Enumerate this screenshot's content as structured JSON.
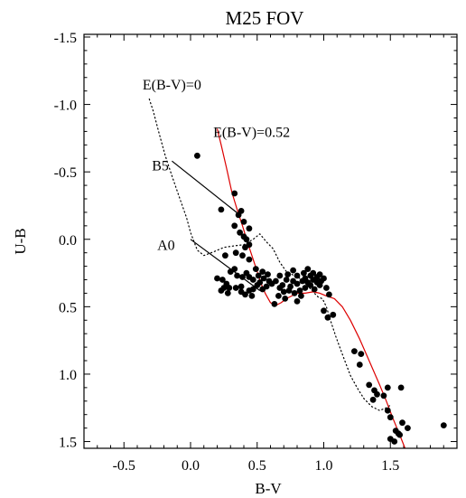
{
  "chart_data": {
    "type": "scatter",
    "title": "M25 FOV",
    "xlabel": "B-V",
    "ylabel": "U-B",
    "xlim": [
      -0.8,
      2.0
    ],
    "ylim": [
      1.55,
      -1.52
    ],
    "y_axis_inverted": true,
    "grid": false,
    "legend": "none",
    "x_ticks": [
      {
        "value": -0.5,
        "label": "-0.5"
      },
      {
        "value": 0.0,
        "label": "0.0"
      },
      {
        "value": 0.5,
        "label": "0.5"
      },
      {
        "value": 1.0,
        "label": "1.0"
      },
      {
        "value": 1.5,
        "label": "1.5"
      }
    ],
    "y_ticks": [
      {
        "value": -1.5,
        "label": "-1.5"
      },
      {
        "value": -1.0,
        "label": "-1.0"
      },
      {
        "value": -0.5,
        "label": "-0.5"
      },
      {
        "value": 0.0,
        "label": "0.0"
      },
      {
        "value": 0.5,
        "label": "0.5"
      },
      {
        "value": 1.0,
        "label": "1.0"
      },
      {
        "value": 1.5,
        "label": "1.5"
      }
    ],
    "x_minor_step": 0.1,
    "y_minor_step": 0.1,
    "series": [
      {
        "kind": "curve",
        "style": "dotted",
        "color": "#000000",
        "points": [
          [
            -0.31,
            -1.04
          ],
          [
            -0.28,
            -0.95
          ],
          [
            -0.24,
            -0.8
          ],
          [
            -0.19,
            -0.62
          ],
          [
            -0.14,
            -0.47
          ],
          [
            -0.08,
            -0.3
          ],
          [
            -0.03,
            -0.16
          ],
          [
            0.0,
            -0.05
          ],
          [
            0.05,
            0.08
          ],
          [
            0.1,
            0.12
          ],
          [
            0.18,
            0.09
          ],
          [
            0.25,
            0.06
          ],
          [
            0.32,
            0.05
          ],
          [
            0.4,
            0.04
          ],
          [
            0.47,
            0.0
          ],
          [
            0.52,
            -0.04
          ],
          [
            0.57,
            0.02
          ],
          [
            0.62,
            0.07
          ],
          [
            0.67,
            0.17
          ],
          [
            0.72,
            0.24
          ],
          [
            0.78,
            0.27
          ],
          [
            0.84,
            0.3
          ],
          [
            0.92,
            0.39
          ],
          [
            0.96,
            0.43
          ],
          [
            0.99,
            0.44
          ],
          [
            1.02,
            0.5
          ],
          [
            1.05,
            0.6
          ],
          [
            1.09,
            0.72
          ],
          [
            1.15,
            0.88
          ],
          [
            1.2,
            1.01
          ],
          [
            1.25,
            1.1
          ],
          [
            1.3,
            1.18
          ],
          [
            1.36,
            1.24
          ],
          [
            1.42,
            1.27
          ],
          [
            1.47,
            1.25
          ],
          [
            1.5,
            1.23
          ]
        ]
      },
      {
        "kind": "curve",
        "style": "solid",
        "color": "#dd0000",
        "points": [
          [
            0.2,
            -0.82
          ],
          [
            0.23,
            -0.7
          ],
          [
            0.27,
            -0.53
          ],
          [
            0.31,
            -0.35
          ],
          [
            0.35,
            -0.22
          ],
          [
            0.39,
            -0.1
          ],
          [
            0.43,
            0.03
          ],
          [
            0.46,
            0.12
          ],
          [
            0.5,
            0.24
          ],
          [
            0.53,
            0.33
          ],
          [
            0.56,
            0.4
          ],
          [
            0.6,
            0.47
          ],
          [
            0.64,
            0.49
          ],
          [
            0.68,
            0.47
          ],
          [
            0.72,
            0.44
          ],
          [
            0.76,
            0.42
          ],
          [
            0.8,
            0.4
          ],
          [
            0.86,
            0.4
          ],
          [
            0.92,
            0.39
          ],
          [
            0.97,
            0.4
          ],
          [
            1.02,
            0.42
          ],
          [
            1.08,
            0.44
          ],
          [
            1.14,
            0.5
          ],
          [
            1.2,
            0.6
          ],
          [
            1.27,
            0.74
          ],
          [
            1.34,
            0.9
          ],
          [
            1.42,
            1.08
          ],
          [
            1.47,
            1.2
          ],
          [
            1.52,
            1.33
          ],
          [
            1.57,
            1.45
          ],
          [
            1.61,
            1.55
          ]
        ]
      },
      {
        "kind": "line",
        "style": "solid",
        "color": "#000000",
        "points": [
          [
            -0.14,
            -0.58
          ],
          [
            0.37,
            -0.18
          ]
        ]
      },
      {
        "kind": "line",
        "style": "solid",
        "color": "#000000",
        "points": [
          [
            0.0,
            0.0
          ],
          [
            0.52,
            0.38
          ]
        ]
      },
      {
        "kind": "scatter",
        "marker": "filled-circle",
        "color": "#000000",
        "points": [
          [
            0.05,
            -0.62
          ],
          [
            0.23,
            -0.22
          ],
          [
            0.33,
            -0.34
          ],
          [
            0.33,
            -0.1
          ],
          [
            0.36,
            -0.18
          ],
          [
            0.38,
            -0.21
          ],
          [
            0.4,
            -0.13
          ],
          [
            0.37,
            -0.05
          ],
          [
            0.4,
            -0.02
          ],
          [
            0.42,
            0.0
          ],
          [
            0.44,
            -0.08
          ],
          [
            0.44,
            0.04
          ],
          [
            0.41,
            0.06
          ],
          [
            0.39,
            0.12
          ],
          [
            0.44,
            0.15
          ],
          [
            0.34,
            0.1
          ],
          [
            0.26,
            0.12
          ],
          [
            0.3,
            0.24
          ],
          [
            0.33,
            0.22
          ],
          [
            0.35,
            0.27
          ],
          [
            0.39,
            0.28
          ],
          [
            0.42,
            0.25
          ],
          [
            0.44,
            0.28
          ],
          [
            0.47,
            0.3
          ],
          [
            0.49,
            0.22
          ],
          [
            0.51,
            0.27
          ],
          [
            0.52,
            0.32
          ],
          [
            0.54,
            0.24
          ],
          [
            0.55,
            0.29
          ],
          [
            0.58,
            0.26
          ],
          [
            0.59,
            0.31
          ],
          [
            0.61,
            0.33
          ],
          [
            0.57,
            0.35
          ],
          [
            0.54,
            0.37
          ],
          [
            0.5,
            0.34
          ],
          [
            0.47,
            0.37
          ],
          [
            0.44,
            0.38
          ],
          [
            0.46,
            0.42
          ],
          [
            0.41,
            0.41
          ],
          [
            0.38,
            0.39
          ],
          [
            0.34,
            0.36
          ],
          [
            0.29,
            0.36
          ],
          [
            0.27,
            0.33
          ],
          [
            0.24,
            0.3
          ],
          [
            0.2,
            0.29
          ],
          [
            0.23,
            0.38
          ],
          [
            0.25,
            0.36
          ],
          [
            0.28,
            0.4
          ],
          [
            0.38,
            0.35
          ],
          [
            0.64,
            0.31
          ],
          [
            0.67,
            0.27
          ],
          [
            0.69,
            0.34
          ],
          [
            0.72,
            0.3
          ],
          [
            0.73,
            0.26
          ],
          [
            0.75,
            0.35
          ],
          [
            0.77,
            0.31
          ],
          [
            0.77,
            0.23
          ],
          [
            0.8,
            0.27
          ],
          [
            0.8,
            0.33
          ],
          [
            0.82,
            0.38
          ],
          [
            0.84,
            0.31
          ],
          [
            0.85,
            0.25
          ],
          [
            0.86,
            0.29
          ],
          [
            0.86,
            0.36
          ],
          [
            0.88,
            0.22
          ],
          [
            0.88,
            0.32
          ],
          [
            0.9,
            0.27
          ],
          [
            0.9,
            0.34
          ],
          [
            0.92,
            0.25
          ],
          [
            0.92,
            0.3
          ],
          [
            0.93,
            0.37
          ],
          [
            0.95,
            0.28
          ],
          [
            0.95,
            0.32
          ],
          [
            0.97,
            0.26
          ],
          [
            0.97,
            0.34
          ],
          [
            0.98,
            0.31
          ],
          [
            1.0,
            0.29
          ],
          [
            0.78,
            0.4
          ],
          [
            0.83,
            0.42
          ],
          [
            0.7,
            0.39
          ],
          [
            0.71,
            0.44
          ],
          [
            0.66,
            0.42
          ],
          [
            0.67,
            0.36
          ],
          [
            1.02,
            0.36
          ],
          [
            1.04,
            0.41
          ],
          [
            0.63,
            0.48
          ],
          [
            0.74,
            0.38
          ],
          [
            0.8,
            0.46
          ],
          [
            1.07,
            0.56
          ],
          [
            1.03,
            0.58
          ],
          [
            1.0,
            0.53
          ],
          [
            1.23,
            0.83
          ],
          [
            1.28,
            0.85
          ],
          [
            1.27,
            0.93
          ],
          [
            1.34,
            1.08
          ],
          [
            1.38,
            1.12
          ],
          [
            1.4,
            1.15
          ],
          [
            1.37,
            1.19
          ],
          [
            1.45,
            1.16
          ],
          [
            1.48,
            1.1
          ],
          [
            1.58,
            1.1
          ],
          [
            1.48,
            1.27
          ],
          [
            1.5,
            1.32
          ],
          [
            1.54,
            1.42
          ],
          [
            1.56,
            1.44
          ],
          [
            1.59,
            1.36
          ],
          [
            1.63,
            1.4
          ],
          [
            1.5,
            1.48
          ],
          [
            1.53,
            1.5
          ],
          [
            1.57,
            1.45
          ],
          [
            1.9,
            1.38
          ]
        ]
      }
    ],
    "annotations": [
      {
        "text": "E(B-V)=0",
        "x": -0.36,
        "y": -1.15
      },
      {
        "text": "E(B-V)=0.52",
        "x": 0.17,
        "y": -0.8
      },
      {
        "text": "B5",
        "x": -0.29,
        "y": -0.55
      },
      {
        "text": "A0",
        "x": -0.25,
        "y": 0.04
      }
    ]
  }
}
